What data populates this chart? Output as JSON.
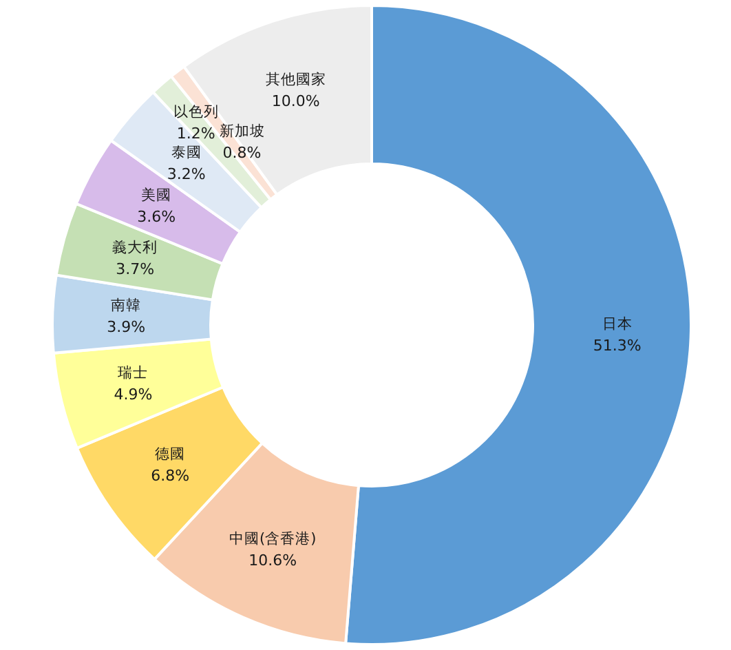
{
  "chart_data": {
    "type": "donut",
    "categories": [
      "日本",
      "中國(含香港)",
      "德國",
      "瑞士",
      "南韓",
      "義大利",
      "美國",
      "泰國",
      "以色列",
      "新加坡",
      "其他國家"
    ],
    "values": [
      51.3,
      10.6,
      6.8,
      4.9,
      3.9,
      3.7,
      3.6,
      3.2,
      1.2,
      0.8,
      10.0
    ],
    "value_labels": [
      "51.3%",
      "10.6%",
      "6.8%",
      "4.9%",
      "3.9%",
      "3.7%",
      "3.6%",
      "3.2%",
      "1.2%",
      "0.8%",
      "10.0%"
    ],
    "colors": [
      "#5b9bd5",
      "#f8cbad",
      "#ffd966",
      "#ffff99",
      "#bdd7ee",
      "#c5e0b4",
      "#d7bbea",
      "#dfe9f5",
      "#e2efd9",
      "#fbe2d5",
      "#ededed"
    ]
  }
}
